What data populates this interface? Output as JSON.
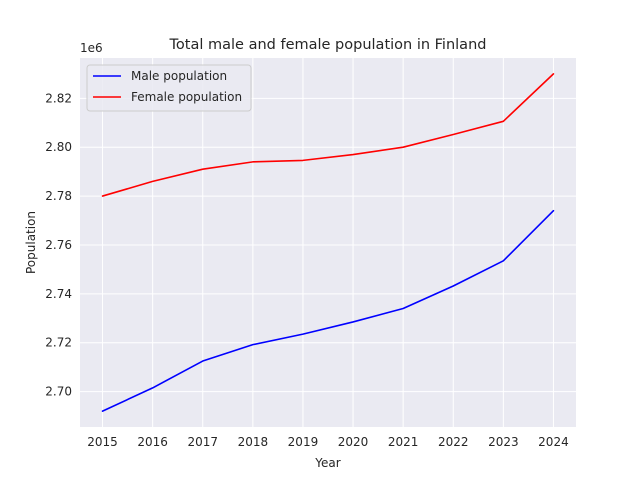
{
  "chart_data": {
    "type": "line",
    "title": "Total male and female population in Finland",
    "xlabel": "Year",
    "ylabel": "Population",
    "offset_label": "1e6",
    "x": [
      2015,
      2016,
      2017,
      2018,
      2019,
      2020,
      2021,
      2022,
      2023,
      2024
    ],
    "x_ticks": [
      "2015",
      "2016",
      "2017",
      "2018",
      "2019",
      "2020",
      "2021",
      "2022",
      "2023",
      "2024"
    ],
    "y_ticks": [
      2.7,
      2.72,
      2.74,
      2.76,
      2.78,
      2.8,
      2.82
    ],
    "y_tick_labels": [
      "2.70",
      "2.72",
      "2.74",
      "2.76",
      "2.78",
      "2.80",
      "2.82"
    ],
    "ylim": [
      2.6855,
      2.8365
    ],
    "xlim": [
      2014.55,
      2024.45
    ],
    "grid": true,
    "legend_position": "top-left",
    "series": [
      {
        "name": "Male population",
        "color": "#0000ff",
        "values": [
          2.692,
          2.7015,
          2.7125,
          2.7192,
          2.7235,
          2.7285,
          2.734,
          2.7432,
          2.7535,
          2.774
        ]
      },
      {
        "name": "Female population",
        "color": "#ff0000",
        "values": [
          2.78,
          2.786,
          2.791,
          2.794,
          2.7946,
          2.797,
          2.8,
          2.8052,
          2.8106,
          2.83
        ]
      }
    ]
  },
  "colors": {
    "plot_background": "#eaeaf2",
    "grid": "#ffffff",
    "text": "#262626"
  }
}
